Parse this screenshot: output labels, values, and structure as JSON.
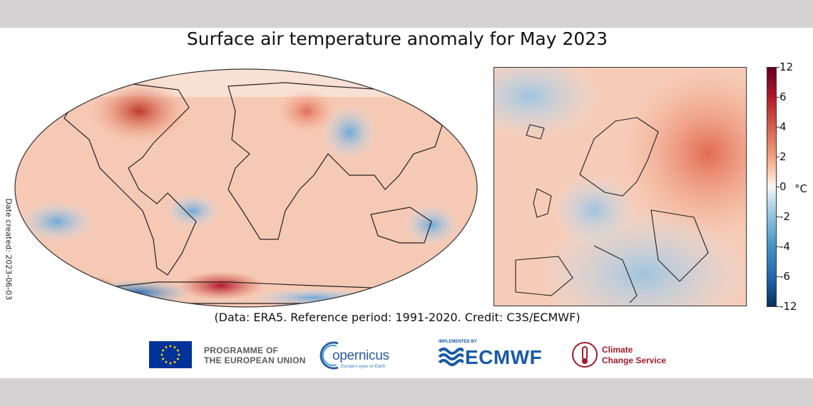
{
  "title": "Surface air temperature anomaly for May 2023",
  "date_created": "Date created: 2023-06-03",
  "credit": "(Data: ERA5.  Reference period: 1991-2020.  Credit: C3S/ECMWF)",
  "colorbar": {
    "unit": "°C",
    "ticks": [
      "12",
      "6",
      "4",
      "2",
      "0",
      "-2",
      "-4",
      "-6",
      "-12"
    ],
    "colors": {
      "max": "#67001f",
      "warm": "#d6604d",
      "neutral": "#f7f7f7",
      "cool": "#4393c3",
      "min": "#053061"
    }
  },
  "maps": {
    "world": "global-robinson-map",
    "europe": "europe-inset-map"
  },
  "logos": {
    "eu": {
      "line1": "PROGRAMME OF",
      "line2": "THE EUROPEAN UNION"
    },
    "copernicus": {
      "name": "opernicus",
      "tagline": "Europe's eyes on Earth"
    },
    "ecmwf": {
      "implemented_by": "IMPLEMENTED BY",
      "name": "ECMWF"
    },
    "c3s": {
      "line1": "Climate",
      "line2": "Change Service"
    }
  }
}
